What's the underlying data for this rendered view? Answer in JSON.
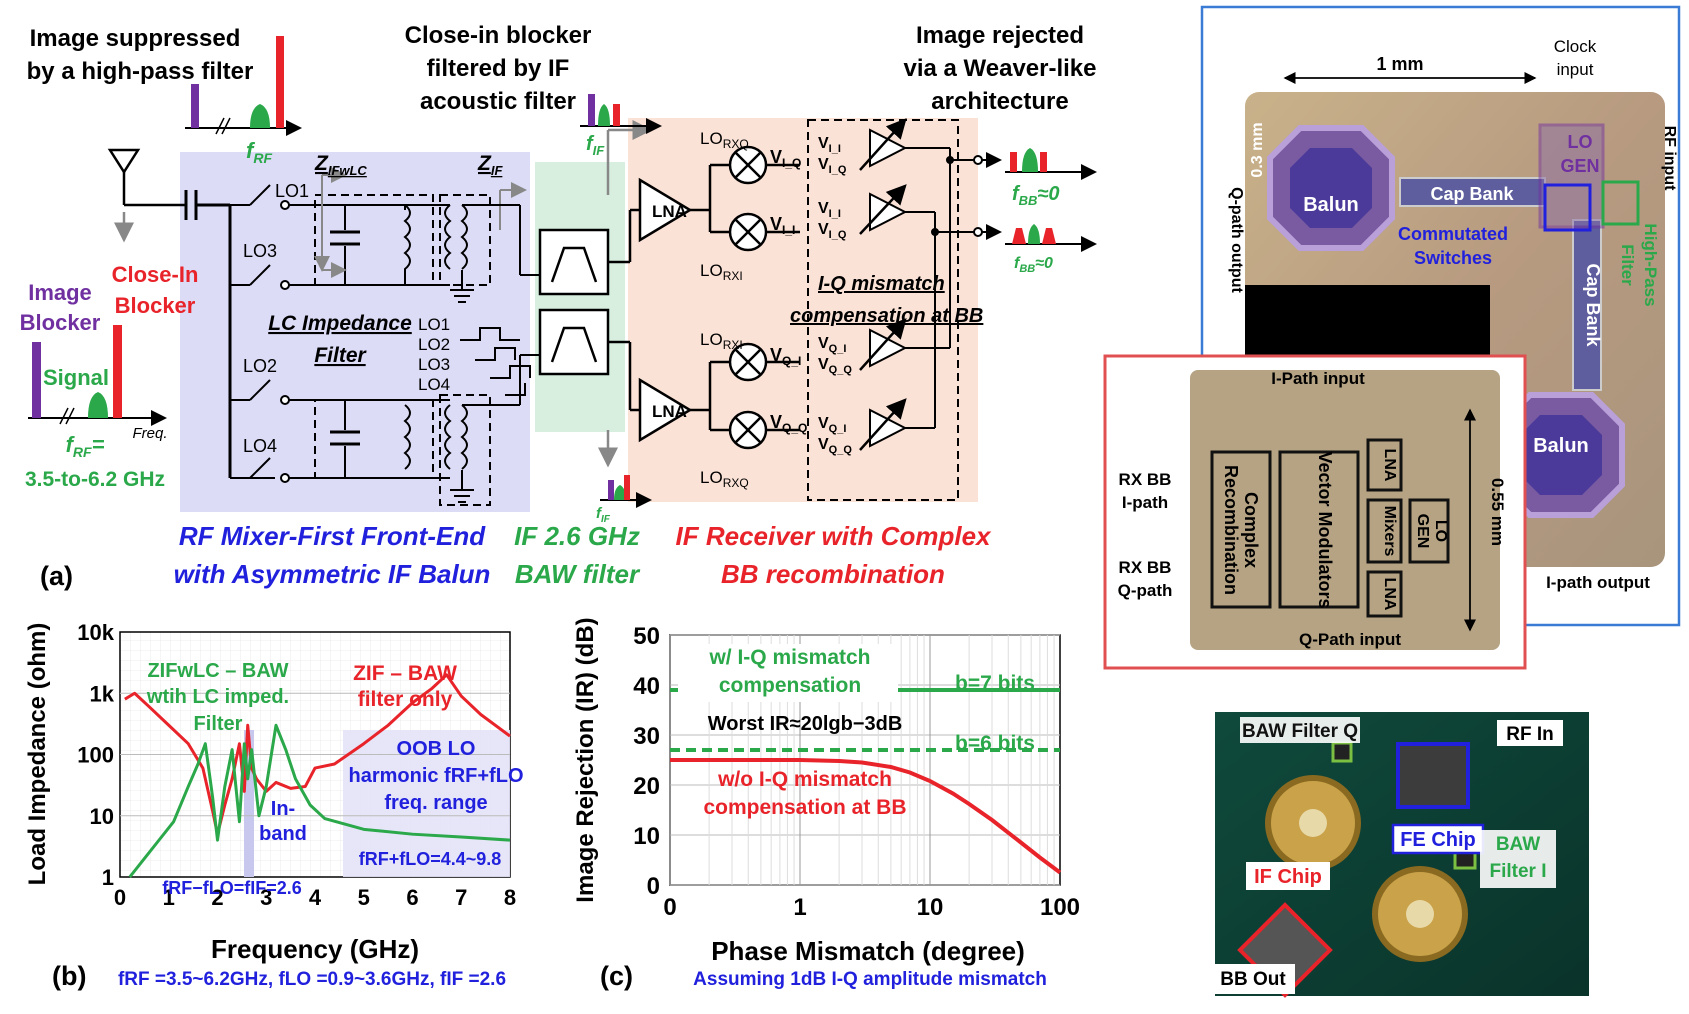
{
  "panel_a": {
    "label": "(a)",
    "image_suppressed": [
      "Image suppressed",
      "by a high-pass filter"
    ],
    "close_in_filtered": [
      "Close-in blocker",
      "filtered by IF",
      "acoustic filter"
    ],
    "image_rejected": [
      "Image rejected",
      "via a Weaver-like",
      "architecture"
    ],
    "image_blocker": [
      "Image",
      "Blocker"
    ],
    "close_in_blocker": [
      "Close-In",
      "Blocker"
    ],
    "signal": "Signal",
    "freq": "Freq.",
    "frf_eq": "f",
    "frf_sub": "RF",
    "frf_eq_tail": "=",
    "frf_range": "3.5-to-6.2 GHz",
    "frf_label": "f",
    "fif_label": "f",
    "fif_sub": "IF",
    "fbb_label": "f",
    "fbb_sub": "BB",
    "fbb_tail": "≈0",
    "z_ifwlc": "Z",
    "z_ifwlc_sub": "IFwLC",
    "z_if": "Z",
    "z_if_sub": "IF",
    "lo1": "LO1",
    "lo2": "LO2",
    "lo3": "LO3",
    "lo4": "LO4",
    "lo_stack": [
      "LO1",
      "LO2",
      "LO3",
      "LO4"
    ],
    "lc_filter": [
      "LC Impedance",
      "Filter"
    ],
    "lna": "LNA",
    "lo_rxq": "LO",
    "lo_rxq_sub": "RXQ",
    "lo_rxi": "LO",
    "lo_rxi_sub": "RXI",
    "v_iq": "V",
    "v_iq_sub": "I_Q",
    "v_ii": "V",
    "v_ii_sub": "I_I",
    "v_qi": "V",
    "v_qi_sub": "Q_I",
    "v_qq": "V",
    "v_qq_sub": "Q_Q",
    "iq_comp": [
      "I-Q mismatch",
      "compensation at BB"
    ],
    "caption_rf": [
      "RF Mixer-First Front-End",
      "with Asymmetric IF Balun"
    ],
    "caption_if": [
      "IF 2.6 GHz",
      "BAW filter"
    ],
    "caption_ifrx": [
      "IF Receiver with Complex",
      "BB recombination"
    ]
  },
  "panel_b": {
    "label": "(b)",
    "footer": "f",
    "footer_text": "fRF =3.5~6.2GHz, fLO =0.9~3.6GHz, fIF =2.6",
    "zif_label": [
      "ZIF – BAW",
      "filter only"
    ],
    "zifwlc_label": [
      "ZIFwLC – BAW",
      "wtih LC imped.",
      "Filter"
    ],
    "inband": [
      "In-",
      "band"
    ],
    "oob": [
      "OOB LO",
      "harmonic fRF+fLO",
      "freq. range"
    ],
    "oob_range": "fRF+fLO=4.4~9.8",
    "inband_eq": "fRF−fLO=fIF=2.6"
  },
  "panel_c": {
    "label": "(c)",
    "footer": "Assuming 1dB I-Q amplitude mismatch",
    "with_comp": [
      "w/ I-Q mismatch",
      "compensation"
    ],
    "b7": "b=7 bits",
    "b6": "b=6 bits",
    "worst": "Worst IR≈20lgb−3dB",
    "without_comp": [
      "w/o I-Q mismatch",
      "compensation at BB"
    ]
  },
  "chart_data": [
    {
      "type": "line",
      "xlabel": "Frequency (GHz)",
      "ylabel": "Load Impedance (ohm)",
      "xlim": [
        0,
        8
      ],
      "ylim": [
        1,
        10000
      ],
      "yscale": "log",
      "grid": true,
      "x_ticks": [
        "0",
        "1",
        "2",
        "3",
        "4",
        "5",
        "6",
        "7",
        "8"
      ],
      "y_ticks": [
        "1",
        "10",
        "100",
        "1k",
        "10k"
      ],
      "series": [
        {
          "name": "ZIF – BAW filter only",
          "color": "#e8232a",
          "x": [
            0.1,
            0.3,
            0.6,
            1.0,
            1.4,
            1.7,
            1.9,
            2.0,
            2.15,
            2.3,
            2.45,
            2.55,
            2.62,
            2.7,
            2.8,
            3.0,
            3.2,
            3.5,
            3.8,
            4.0,
            4.4,
            5.0,
            5.5,
            6.0,
            6.4,
            6.7,
            7.0,
            7.4,
            8.0
          ],
          "y": [
            800,
            1000,
            600,
            300,
            150,
            60,
            12,
            5,
            15,
            40,
            150,
            25,
            300,
            60,
            40,
            25,
            35,
            28,
            30,
            60,
            70,
            150,
            300,
            700,
            1200,
            2000,
            900,
            450,
            200
          ]
        },
        {
          "name": "ZIFwLC – BAW wtih LC imped. Filter",
          "color": "#2aa84a",
          "x": [
            0.2,
            0.5,
            0.8,
            1.1,
            1.4,
            1.6,
            1.75,
            1.9,
            2.0,
            2.15,
            2.3,
            2.45,
            2.55,
            2.62,
            2.7,
            2.85,
            3.0,
            3.2,
            3.4,
            3.6,
            3.9,
            4.2,
            5.0,
            6.0,
            7.0,
            8.0
          ],
          "y": [
            1,
            2,
            4,
            8,
            30,
            70,
            150,
            20,
            4,
            30,
            120,
            8,
            150,
            40,
            120,
            10,
            30,
            300,
            120,
            40,
            15,
            9,
            6,
            5,
            4.5,
            4
          ]
        }
      ]
    },
    {
      "type": "line",
      "xlabel": "Phase Mismatch (degree)",
      "ylabel": "Image Rejection (IR) (dB)",
      "xscale": "log",
      "xlim": [
        0.1,
        100
      ],
      "ylim": [
        0,
        50
      ],
      "grid": true,
      "x_ticks": [
        "0",
        "1",
        "10",
        "100"
      ],
      "y_ticks": [
        "0",
        "10",
        "20",
        "30",
        "40",
        "50"
      ],
      "series": [
        {
          "name": "b=7 bits",
          "color": "#2aa84a",
          "style": "solid",
          "x": [
            0.1,
            100
          ],
          "y": [
            39,
            39
          ]
        },
        {
          "name": "b=6 bits",
          "color": "#2aa84a",
          "style": "dashed",
          "x": [
            0.1,
            100
          ],
          "y": [
            27,
            27
          ]
        },
        {
          "name": "w/o I-Q mismatch compensation at BB",
          "color": "#e8232a",
          "style": "solid",
          "x": [
            0.1,
            0.3,
            1,
            2,
            3,
            5,
            7,
            10,
            15,
            20,
            30,
            50,
            70,
            100
          ],
          "y": [
            25,
            25,
            25,
            24.8,
            24.5,
            23.6,
            22.5,
            20.8,
            18.3,
            16.2,
            13,
            8.5,
            5.5,
            2.5
          ]
        }
      ]
    }
  ],
  "die_fe": {
    "dim_1mm": "1 mm",
    "clock": [
      "Clock",
      "input"
    ],
    "rf_input": "RF input",
    "dim_03": "0.3 mm",
    "balun": "Balun",
    "cap_bank": "Cap Bank",
    "lo_gen": [
      "LO",
      "GEN"
    ],
    "commutated": [
      "Commutated",
      "Switches"
    ],
    "high_pass": [
      "High-Pass",
      "Filter"
    ],
    "cap_bank_v": "Cap Bank",
    "q_path_output": "Q-path output",
    "i_path_output": "I-path output",
    "balun2": "Balun"
  },
  "die_if": {
    "i_path_input": "I-Path input",
    "q_path_input": "Q-Path input",
    "rx_bb_i": [
      "RX BB",
      "I-path"
    ],
    "rx_bb_q": [
      "RX BB",
      "Q-path"
    ],
    "complex_recomb": [
      "Complex",
      "Recombination"
    ],
    "vector_mod": "Vector Modulators",
    "lna": "LNA",
    "mixers": "Mixers",
    "lo_gen": [
      "LO",
      "GEN"
    ],
    "dim_055": "0.55 mm"
  },
  "pcb": {
    "baw_q": "BAW Filter Q",
    "rf_in": "RF In",
    "fe_chip": "FE Chip",
    "baw_i": [
      "BAW",
      "Filter I"
    ],
    "if_chip": "IF Chip",
    "bb_out": "BB Out"
  }
}
